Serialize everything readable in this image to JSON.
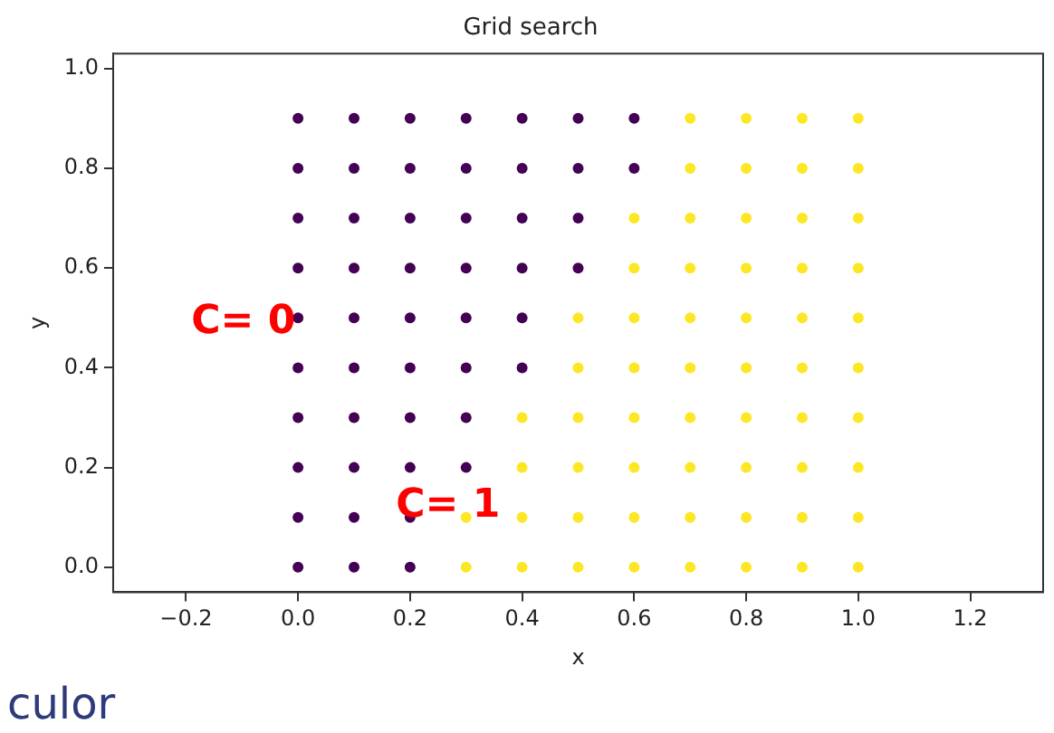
{
  "chart_data": {
    "type": "scatter",
    "title": "Grid search",
    "xlabel": "x",
    "ylabel": "y",
    "xlim": [
      -0.33,
      1.33
    ],
    "xticks": [
      {
        "value": -0.2,
        "label": "−0.2"
      },
      {
        "value": 0,
        "label": "0.0"
      },
      0.2,
      0.4,
      0.6,
      0.8,
      {
        "value": 1,
        "label": "1.0"
      },
      1.2
    ],
    "ylim": [
      -0.05,
      1.03
    ],
    "yticks": [
      {
        "value": 0,
        "label": "0.0"
      },
      0.2,
      0.4,
      0.6,
      0.8,
      {
        "value": 1,
        "label": "1.0"
      }
    ],
    "grid": false,
    "legend": false,
    "marker": "circle",
    "series": [
      {
        "color": "#440154",
        "x": [
          0,
          0.1,
          0.2,
          0,
          0.1,
          0.2,
          0,
          0.1,
          0.2,
          0.3,
          0,
          0.1,
          0.2,
          0.3,
          0,
          0.1,
          0.2,
          0.3,
          0.4,
          0,
          0.1,
          0.2,
          0.3,
          0.4,
          0,
          0.1,
          0.2,
          0.3,
          0.4,
          0.5,
          0,
          0.1,
          0.2,
          0.3,
          0.4,
          0.5,
          0,
          0.1,
          0.2,
          0.3,
          0.4,
          0.5,
          0.6,
          0,
          0.1,
          0.2,
          0.3,
          0.4,
          0.5,
          0.6
        ],
        "values": [
          0,
          0,
          0,
          0.1,
          0.1,
          0.1,
          0.2,
          0.2,
          0.2,
          0.2,
          0.3,
          0.3,
          0.3,
          0.3,
          0.4,
          0.4,
          0.4,
          0.4,
          0.4,
          0.5,
          0.5,
          0.5,
          0.5,
          0.5,
          0.6,
          0.6,
          0.6,
          0.6,
          0.6,
          0.6,
          0.7,
          0.7,
          0.7,
          0.7,
          0.7,
          0.7,
          0.8,
          0.8,
          0.8,
          0.8,
          0.8,
          0.8,
          0.8,
          0.9,
          0.9,
          0.9,
          0.9,
          0.9,
          0.9,
          0.9
        ]
      },
      {
        "color": "#fde725",
        "x": [
          0.3,
          0.4,
          0.5,
          0.6,
          0.7,
          0.8,
          0.9,
          1.0,
          0.3,
          0.4,
          0.5,
          0.6,
          0.7,
          0.8,
          0.9,
          1.0,
          0.4,
          0.5,
          0.6,
          0.7,
          0.8,
          0.9,
          1.0,
          0.4,
          0.5,
          0.6,
          0.7,
          0.8,
          0.9,
          1.0,
          0.5,
          0.6,
          0.7,
          0.8,
          0.9,
          1.0,
          0.5,
          0.6,
          0.7,
          0.8,
          0.9,
          1.0,
          0.6,
          0.7,
          0.8,
          0.9,
          1.0,
          0.6,
          0.7,
          0.8,
          0.9,
          1.0,
          0.7,
          0.8,
          0.9,
          1.0,
          0.7,
          0.8,
          0.9,
          1.0
        ],
        "values": [
          0,
          0,
          0,
          0,
          0,
          0,
          0,
          0,
          0.1,
          0.1,
          0.1,
          0.1,
          0.1,
          0.1,
          0.1,
          0.1,
          0.2,
          0.2,
          0.2,
          0.2,
          0.2,
          0.2,
          0.2,
          0.3,
          0.3,
          0.3,
          0.3,
          0.3,
          0.3,
          0.3,
          0.4,
          0.4,
          0.4,
          0.4,
          0.4,
          0.4,
          0.5,
          0.5,
          0.5,
          0.5,
          0.5,
          0.5,
          0.6,
          0.6,
          0.6,
          0.6,
          0.6,
          0.7,
          0.7,
          0.7,
          0.7,
          0.7,
          0.8,
          0.8,
          0.8,
          0.8,
          0.9,
          0.9,
          0.9,
          0.9
        ]
      }
    ],
    "annotations": [
      "C= 0",
      "C= 1",
      "culor"
    ]
  }
}
